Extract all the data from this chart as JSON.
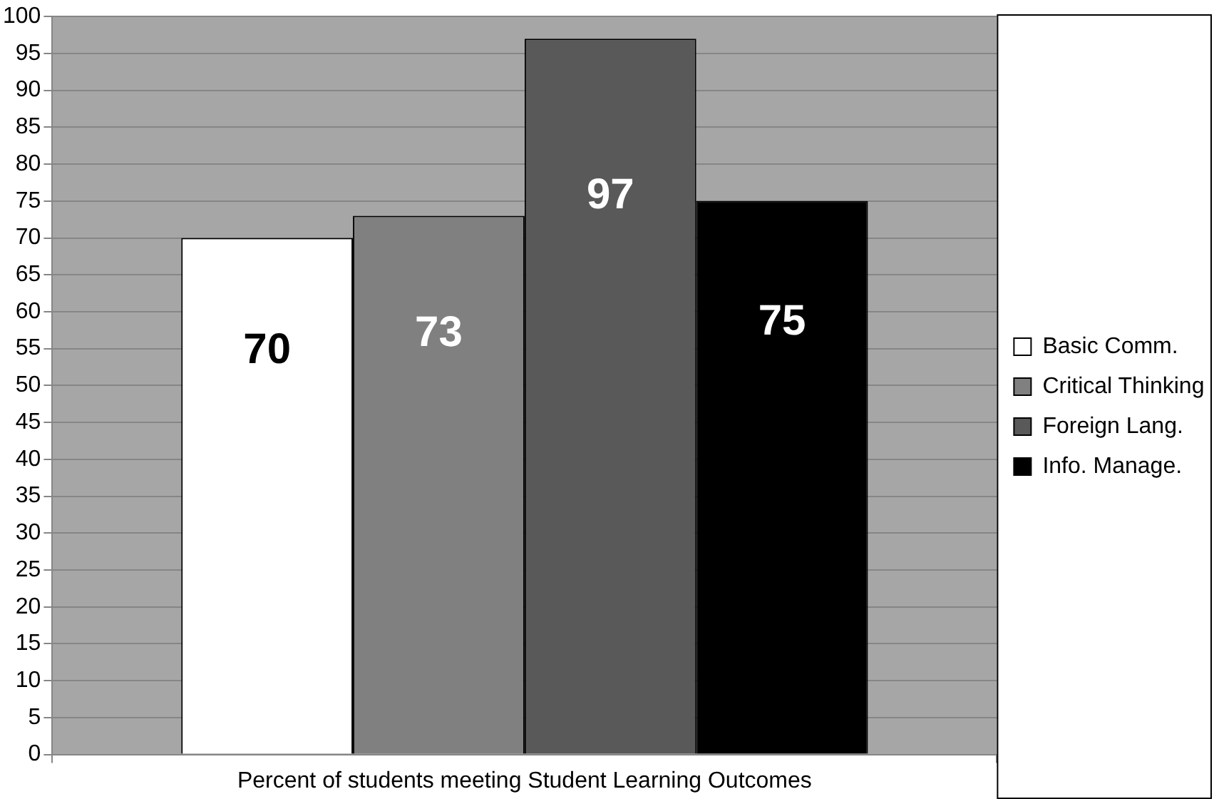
{
  "chart_data": {
    "type": "bar",
    "categories": [
      "Percent of students meeting Student Learning Outcomes"
    ],
    "series": [
      {
        "name": "Basic Comm.",
        "color": "#ffffff",
        "values": [
          70
        ]
      },
      {
        "name": "Critical Thinking",
        "color": "#808080",
        "values": [
          73
        ]
      },
      {
        "name": "Foreign Lang.",
        "color": "#595959",
        "values": [
          97
        ]
      },
      {
        "name": "Info. Manage.",
        "color": "#000000",
        "values": [
          75
        ]
      }
    ],
    "ylim": [
      0,
      100
    ],
    "yticks": [
      0,
      5,
      10,
      15,
      20,
      25,
      30,
      35,
      40,
      45,
      50,
      55,
      60,
      65,
      70,
      75,
      80,
      85,
      90,
      95,
      100
    ],
    "grid": "y",
    "legend": "right",
    "data_labels": true
  }
}
